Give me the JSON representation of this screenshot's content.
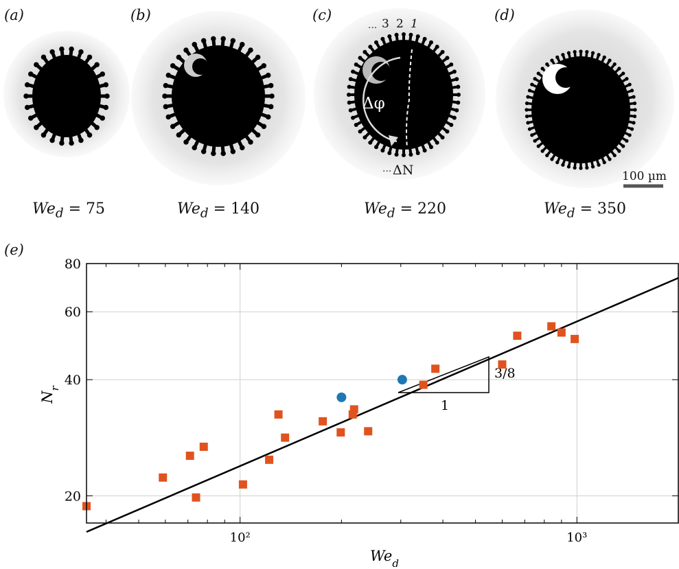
{
  "panels": [
    {
      "letter": "(a)",
      "we_var": "We",
      "we_sub": "d",
      "we_value": "75"
    },
    {
      "letter": "(b)",
      "we_var": "We",
      "we_sub": "d",
      "we_value": "140"
    },
    {
      "letter": "(c)",
      "we_var": "We",
      "we_sub": "d",
      "we_value": "220"
    },
    {
      "letter": "(d)",
      "we_var": "We",
      "we_sub": "d",
      "we_value": "350"
    }
  ],
  "panel_c_annotations": {
    "ring_labels": [
      "3",
      "2",
      "1"
    ],
    "dots": "···",
    "angle_label": "Δφ",
    "count_label": "ΔN"
  },
  "scale_bar": {
    "label": "100 µm"
  },
  "chart_panel_label": "(e)",
  "chart_data": {
    "type": "scatter",
    "xscale": "log",
    "yscale": "log",
    "xlim": [
      35,
      2000
    ],
    "ylim": [
      17,
      80
    ],
    "xticks": [
      100,
      1000
    ],
    "xtick_labels": [
      "10²",
      "10³"
    ],
    "yticks": [
      20,
      40,
      60,
      80
    ],
    "ytick_labels": [
      "20",
      "40",
      "60",
      "80"
    ],
    "xlabel": "We_d",
    "ylabel": "N_r",
    "grid": true,
    "colors": {
      "squares": "#e0531f",
      "circles": "#1f77b4",
      "fit": "#000000"
    },
    "series": [
      {
        "marker": "square",
        "points": [
          [
            35,
            18.8
          ],
          [
            59,
            22.3
          ],
          [
            71,
            25.4
          ],
          [
            74,
            19.8
          ],
          [
            78,
            26.8
          ],
          [
            102,
            21.4
          ],
          [
            122,
            24.8
          ],
          [
            130,
            32.5
          ],
          [
            136,
            28.3
          ],
          [
            176,
            31.2
          ],
          [
            199,
            29.2
          ],
          [
            216,
            32.5
          ],
          [
            218,
            33.5
          ],
          [
            240,
            29.4
          ],
          [
            350,
            38.8
          ],
          [
            380,
            42.7
          ],
          [
            600,
            43.8
          ],
          [
            665,
            52.0
          ],
          [
            840,
            55.0
          ],
          [
            900,
            53.0
          ],
          [
            985,
            51.0
          ]
        ]
      },
      {
        "marker": "circle",
        "points": [
          [
            200,
            36.0
          ],
          [
            303,
            40.0
          ]
        ]
      }
    ],
    "fit_line": {
      "x": [
        35,
        2000
      ],
      "y": [
        16.12,
        73.4
      ]
    },
    "slope_triangle": {
      "run_label": "1",
      "rise_label": "3/8"
    }
  }
}
